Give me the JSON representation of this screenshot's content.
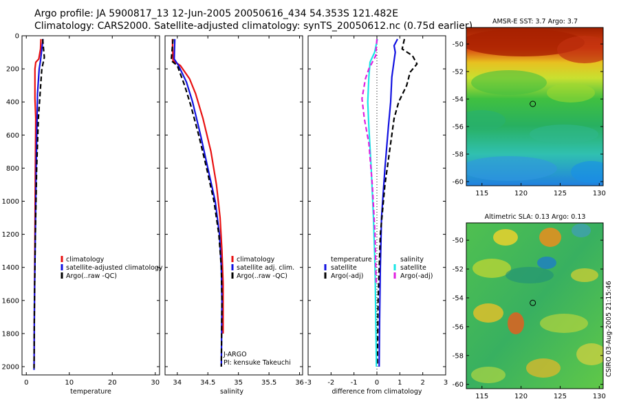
{
  "header": {
    "line1": "Argo profile: JA 5900817_13 12-Jun-2005 20050616_434 54.353S 121.482E",
    "line2": "Climatology: CARS2000. Satellite-adjusted climatology: synTS_20050612.nc (0.75d earlier)"
  },
  "side_stamp": "CSIRO 03-Aug-2005 21:15:46",
  "colors": {
    "red": "#e81010",
    "blue": "#1010e0",
    "black": "#000000",
    "cyan": "#18e6e6",
    "magenta": "#e020e0"
  },
  "chart_data": [
    {
      "type": "line",
      "panel": "temperature",
      "xlabel": "temperature",
      "ylabel": "",
      "xlim": [
        -1,
        31
      ],
      "ylim": [
        2050,
        0
      ],
      "x_ticks": [
        0,
        10,
        20,
        30
      ],
      "y_ticks": [
        0,
        200,
        400,
        600,
        800,
        1000,
        1200,
        1400,
        1600,
        1800,
        2000
      ],
      "series": [
        {
          "name": "climatology",
          "color": "red",
          "dash": false,
          "points": [
            [
              3.4,
              20
            ],
            [
              3.3,
              80
            ],
            [
              2.9,
              140
            ],
            [
              2.2,
              160
            ],
            [
              2.0,
              200
            ],
            [
              2.0,
              380
            ],
            [
              2.2,
              500
            ],
            [
              2.1,
              800
            ],
            [
              2.0,
              1200
            ],
            [
              1.9,
              1600
            ],
            [
              1.8,
              2000
            ]
          ]
        },
        {
          "name": "satellite-adjusted climatology",
          "color": "blue",
          "dash": false,
          "points": [
            [
              3.9,
              20
            ],
            [
              3.6,
              80
            ],
            [
              3.3,
              150
            ],
            [
              3.0,
              200
            ],
            [
              2.6,
              350
            ],
            [
              2.5,
              500
            ],
            [
              2.3,
              800
            ],
            [
              2.1,
              1200
            ],
            [
              1.9,
              1600
            ],
            [
              1.8,
              2020
            ]
          ]
        },
        {
          "name": "Argo(..raw -QC)",
          "color": "black",
          "dash": true,
          "points": [
            [
              3.8,
              20
            ],
            [
              4.0,
              80
            ],
            [
              4.2,
              130
            ],
            [
              3.6,
              200
            ],
            [
              3.2,
              350
            ],
            [
              2.8,
              500
            ],
            [
              2.4,
              800
            ],
            [
              2.1,
              1200
            ],
            [
              1.9,
              1600
            ],
            [
              1.8,
              2010
            ]
          ]
        }
      ],
      "legend": {
        "position": "lower-right",
        "entries": [
          "climatology",
          "satellite-adjusted climatology",
          "Argo(..raw -QC)"
        ]
      }
    },
    {
      "type": "line",
      "panel": "salinity",
      "xlabel": "salinity",
      "xlim": [
        33.8,
        36.05
      ],
      "ylim": [
        2050,
        0
      ],
      "x_ticks": [
        34,
        34.5,
        35,
        35.5,
        36
      ],
      "series": [
        {
          "name": "climatology",
          "color": "red",
          "dash": false,
          "points": [
            [
              33.92,
              20
            ],
            [
              33.93,
              150
            ],
            [
              34.05,
              180
            ],
            [
              34.2,
              260
            ],
            [
              34.3,
              350
            ],
            [
              34.42,
              500
            ],
            [
              34.55,
              700
            ],
            [
              34.64,
              900
            ],
            [
              34.7,
              1100
            ],
            [
              34.73,
              1300
            ],
            [
              34.75,
              1500
            ],
            [
              34.75,
              1700
            ],
            [
              34.75,
              1800
            ]
          ]
        },
        {
          "name": "satellite adj. clim.",
          "color": "blue",
          "dash": false,
          "points": [
            [
              33.96,
              20
            ],
            [
              33.95,
              140
            ],
            [
              34.02,
              180
            ],
            [
              34.15,
              280
            ],
            [
              34.25,
              400
            ],
            [
              34.38,
              600
            ],
            [
              34.5,
              800
            ],
            [
              34.62,
              1000
            ],
            [
              34.69,
              1200
            ],
            [
              34.72,
              1400
            ],
            [
              34.73,
              1600
            ],
            [
              34.72,
              2000
            ]
          ]
        },
        {
          "name": "Argo(..raw -QC)",
          "color": "black",
          "dash": true,
          "points": [
            [
              33.93,
              20
            ],
            [
              33.9,
              150
            ],
            [
              34.0,
              180
            ],
            [
              34.12,
              300
            ],
            [
              34.22,
              420
            ],
            [
              34.35,
              600
            ],
            [
              34.48,
              800
            ],
            [
              34.6,
              1000
            ],
            [
              34.68,
              1200
            ],
            [
              34.72,
              1400
            ],
            [
              34.73,
              1600
            ],
            [
              34.72,
              2000
            ]
          ]
        }
      ],
      "legend": {
        "position": "lower-right",
        "entries": [
          "climatology",
          "satellite adj. clim.",
          "Argo(..raw -QC)"
        ]
      },
      "annotation": [
        "J-ARGO",
        "PI: kensuke Takeuchi"
      ]
    },
    {
      "type": "line",
      "panel": "difference",
      "xlabel": "difference from climatology",
      "xlim": [
        -3,
        3
      ],
      "ylim": [
        2050,
        0
      ],
      "x_ticks": [
        -3,
        -2,
        -1,
        0,
        1,
        2,
        3
      ],
      "zero_line": true,
      "series": [
        {
          "name": "temperature satellite",
          "color": "blue",
          "dash": false,
          "points": [
            [
              0.9,
              20
            ],
            [
              0.75,
              60
            ],
            [
              0.8,
              100
            ],
            [
              0.75,
              150
            ],
            [
              0.65,
              250
            ],
            [
              0.6,
              400
            ],
            [
              0.5,
              550
            ],
            [
              0.35,
              800
            ],
            [
              0.2,
              1100
            ],
            [
              0.15,
              1400
            ],
            [
              0.12,
              1700
            ],
            [
              0.1,
              2000
            ]
          ]
        },
        {
          "name": "temperature Argo(-adj)",
          "color": "black",
          "dash": true,
          "points": [
            [
              1.2,
              20
            ],
            [
              1.1,
              80
            ],
            [
              1.55,
              120
            ],
            [
              1.75,
              170
            ],
            [
              1.45,
              220
            ],
            [
              1.3,
              300
            ],
            [
              0.95,
              400
            ],
            [
              0.75,
              500
            ],
            [
              0.6,
              650
            ],
            [
              0.35,
              900
            ],
            [
              0.15,
              1200
            ],
            [
              0.05,
              1600
            ],
            [
              0.02,
              2000
            ]
          ]
        },
        {
          "name": "salinity satellite",
          "color": "cyan",
          "dash": false,
          "points": [
            [
              0.02,
              20
            ],
            [
              -0.1,
              100
            ],
            [
              -0.3,
              160
            ],
            [
              -0.35,
              250
            ],
            [
              -0.4,
              400
            ],
            [
              -0.35,
              550
            ],
            [
              -0.25,
              800
            ],
            [
              -0.15,
              1100
            ],
            [
              -0.08,
              1400
            ],
            [
              -0.05,
              1700
            ],
            [
              -0.02,
              2000
            ]
          ]
        },
        {
          "name": "salinity Argo(-adj)",
          "color": "magenta",
          "dash": true,
          "points": [
            [
              0.0,
              20
            ],
            [
              -0.05,
              120
            ],
            [
              -0.35,
              200
            ],
            [
              -0.5,
              260
            ],
            [
              -0.65,
              380
            ],
            [
              -0.55,
              500
            ],
            [
              -0.35,
              650
            ],
            [
              -0.2,
              900
            ],
            [
              -0.08,
              1200
            ],
            [
              -0.03,
              1500
            ]
          ]
        }
      ],
      "legend": {
        "left_title": "temperature",
        "left": [
          "satellite",
          "Argo(-adj)"
        ],
        "right_title": "salinity",
        "right": [
          "satellite",
          "Argo(-adj)"
        ]
      }
    },
    {
      "type": "heatmap",
      "panel": "sst_map",
      "title": "AMSR-E SST: 3.7 Argo: 3.7",
      "xlim": [
        113,
        130.5
      ],
      "ylim": [
        -60.3,
        -48.8
      ],
      "x_ticks": [
        115,
        120,
        125,
        130
      ],
      "y_ticks": [
        -50,
        -52,
        -54,
        -56,
        -58,
        -60
      ],
      "marker": [
        121.5,
        -54.35
      ]
    },
    {
      "type": "heatmap",
      "panel": "sla_map",
      "title": "Altimetric SLA: 0.13 Argo: 0.13",
      "xlim": [
        113,
        130.5
      ],
      "ylim": [
        -60.3,
        -48.8
      ],
      "x_ticks": [
        115,
        120,
        125,
        130
      ],
      "y_ticks": [
        -50,
        -52,
        -54,
        -56,
        -58,
        -60
      ],
      "marker": [
        121.5,
        -54.35
      ]
    }
  ]
}
